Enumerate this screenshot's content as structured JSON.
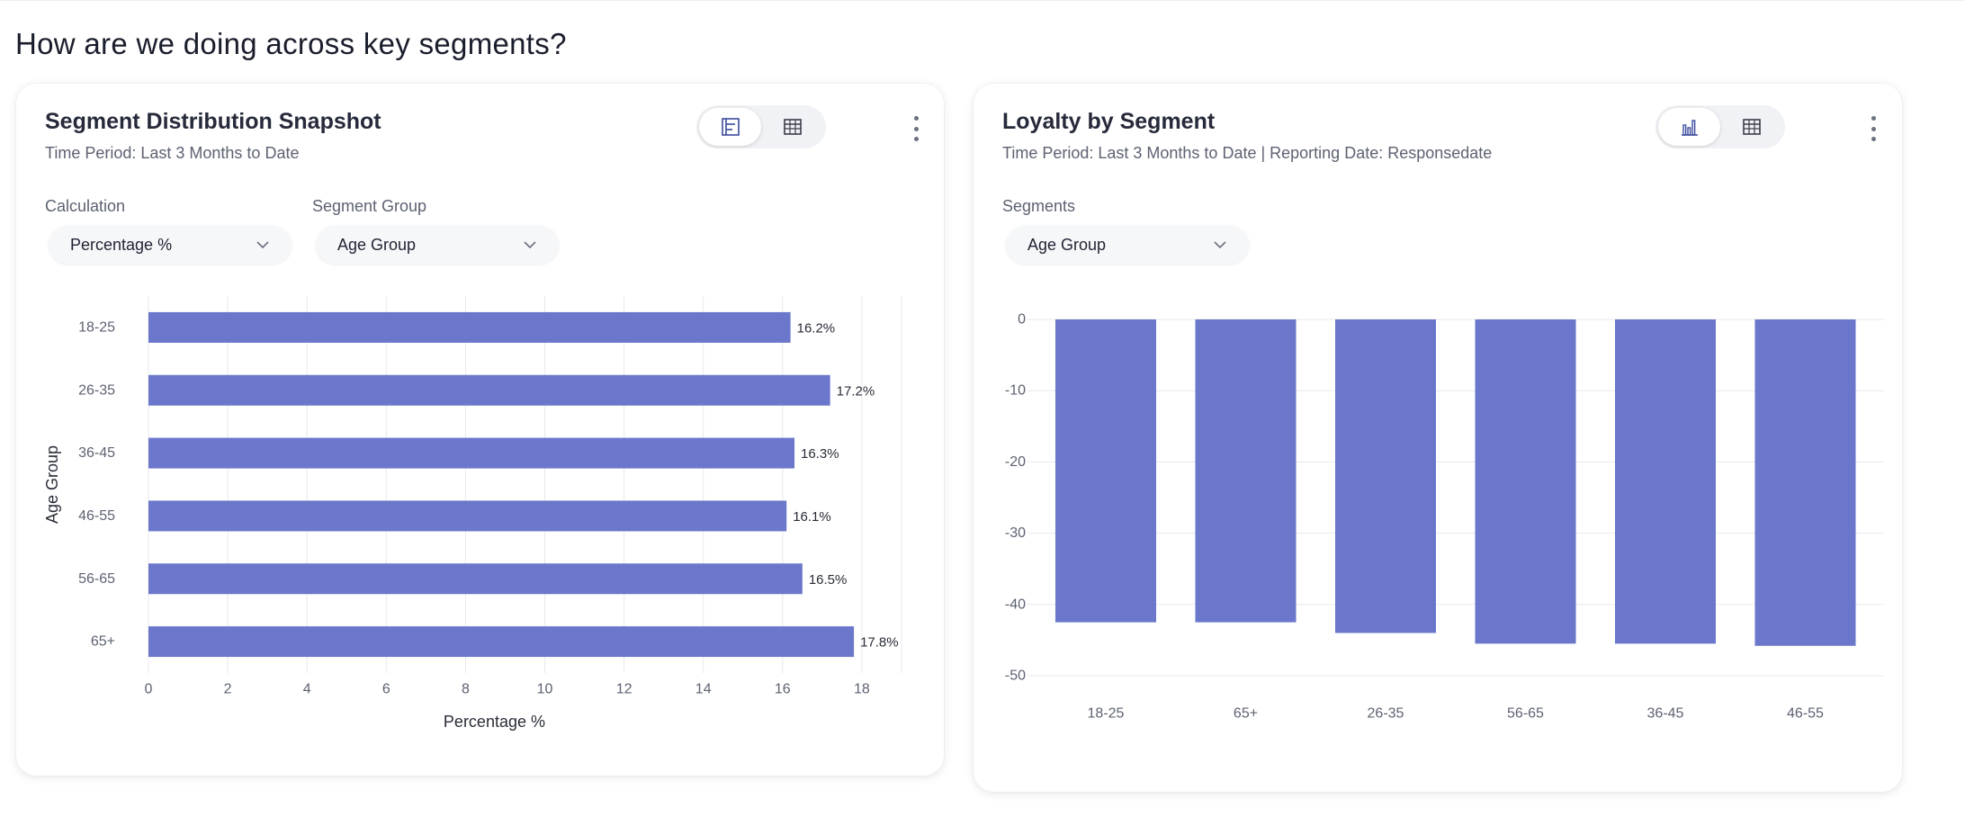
{
  "page": {
    "heading": "How are we doing across key segments?"
  },
  "left_card": {
    "title": "Segment Distribution Snapshot",
    "subtitle": "Time Period: Last 3 Months to Date",
    "toggle_icons": [
      "horizontal-bar-chart-icon",
      "table-icon"
    ],
    "calculation": {
      "label": "Calculation",
      "value": "Percentage %"
    },
    "segment_group": {
      "label": "Segment Group",
      "value": "Age Group"
    }
  },
  "right_card": {
    "title": "Loyalty by Segment",
    "subtitle": "Time Period: Last 3 Months to Date | Reporting Date: Responsedate",
    "toggle_icons": [
      "bar-chart-icon",
      "table-icon"
    ],
    "segments": {
      "label": "Segments",
      "value": "Age Group"
    }
  },
  "colors": {
    "bar": "#6a77cb",
    "grid": "#e8e9ee",
    "axis_text": "#5d6272",
    "icon": "#3b4a9c"
  },
  "chart_data": [
    {
      "type": "bar",
      "orientation": "horizontal",
      "categories": [
        "18-25",
        "26-35",
        "36-45",
        "46-55",
        "56-65",
        "65+"
      ],
      "values": [
        16.2,
        17.2,
        16.3,
        16.1,
        16.5,
        17.8
      ],
      "data_labels": [
        "16.2%",
        "17.2%",
        "16.3%",
        "16.1%",
        "16.5%",
        "17.8%"
      ],
      "xlabel": "Percentage %",
      "ylabel": "Age Group",
      "xlim": [
        0,
        19
      ],
      "xticks": [
        0,
        2,
        4,
        6,
        8,
        10,
        12,
        14,
        16,
        18
      ],
      "grid": true
    },
    {
      "type": "bar",
      "orientation": "vertical",
      "categories": [
        "18-25",
        "65+",
        "26-35",
        "56-65",
        "36-45",
        "46-55"
      ],
      "values": [
        -42.5,
        -42.5,
        -44,
        -45.5,
        -45.5,
        -45.8
      ],
      "ylim": [
        -50,
        0
      ],
      "yticks": [
        0,
        -10,
        -20,
        -30,
        -40,
        -50
      ],
      "grid": true
    }
  ]
}
